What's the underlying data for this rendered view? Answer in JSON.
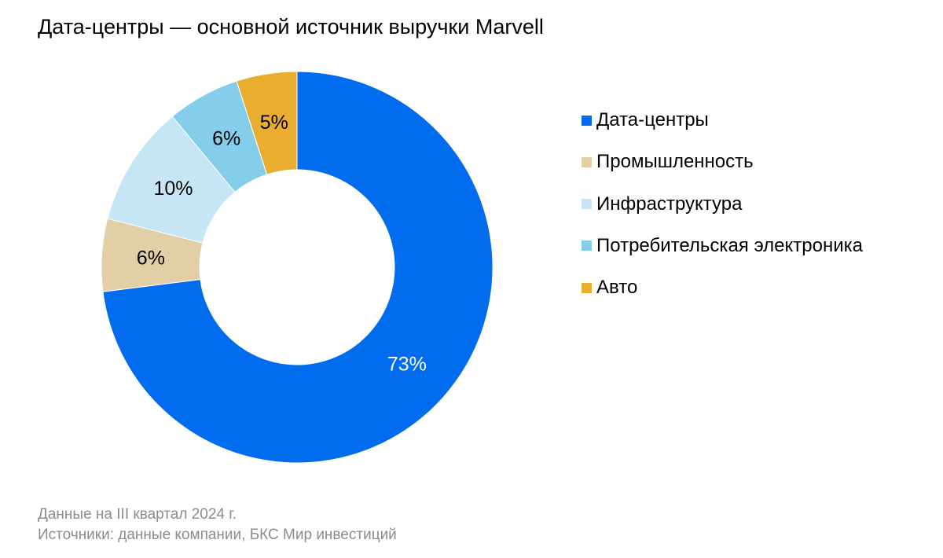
{
  "title": "Дата-центры — основной источник выручки Marvell",
  "chart_data": {
    "type": "pie",
    "donut": true,
    "title": "Дата-центры — основной источник выручки Marvell",
    "legend_position": "right",
    "categories": [
      "Дата-центры",
      "Промышленность",
      "Инфраструктура",
      "Потребительская электроника",
      "Авто"
    ],
    "values": [
      73,
      6,
      10,
      6,
      5
    ],
    "labels": [
      "73%",
      "6%",
      "10%",
      "6%",
      "5%"
    ],
    "colors": [
      "#026CEE",
      "#E2CFA5",
      "#C6E6F5",
      "#84CDEB",
      "#E9AE2F"
    ],
    "label_colors": [
      "#ffffff",
      "#000000",
      "#000000",
      "#000000",
      "#000000"
    ],
    "clockwise": true,
    "start": "12 o'clock"
  },
  "footer": {
    "line1": "Данные на III квартал 2024 г.",
    "line2": "Источники: данные компании, БКС Мир инвестиций"
  }
}
